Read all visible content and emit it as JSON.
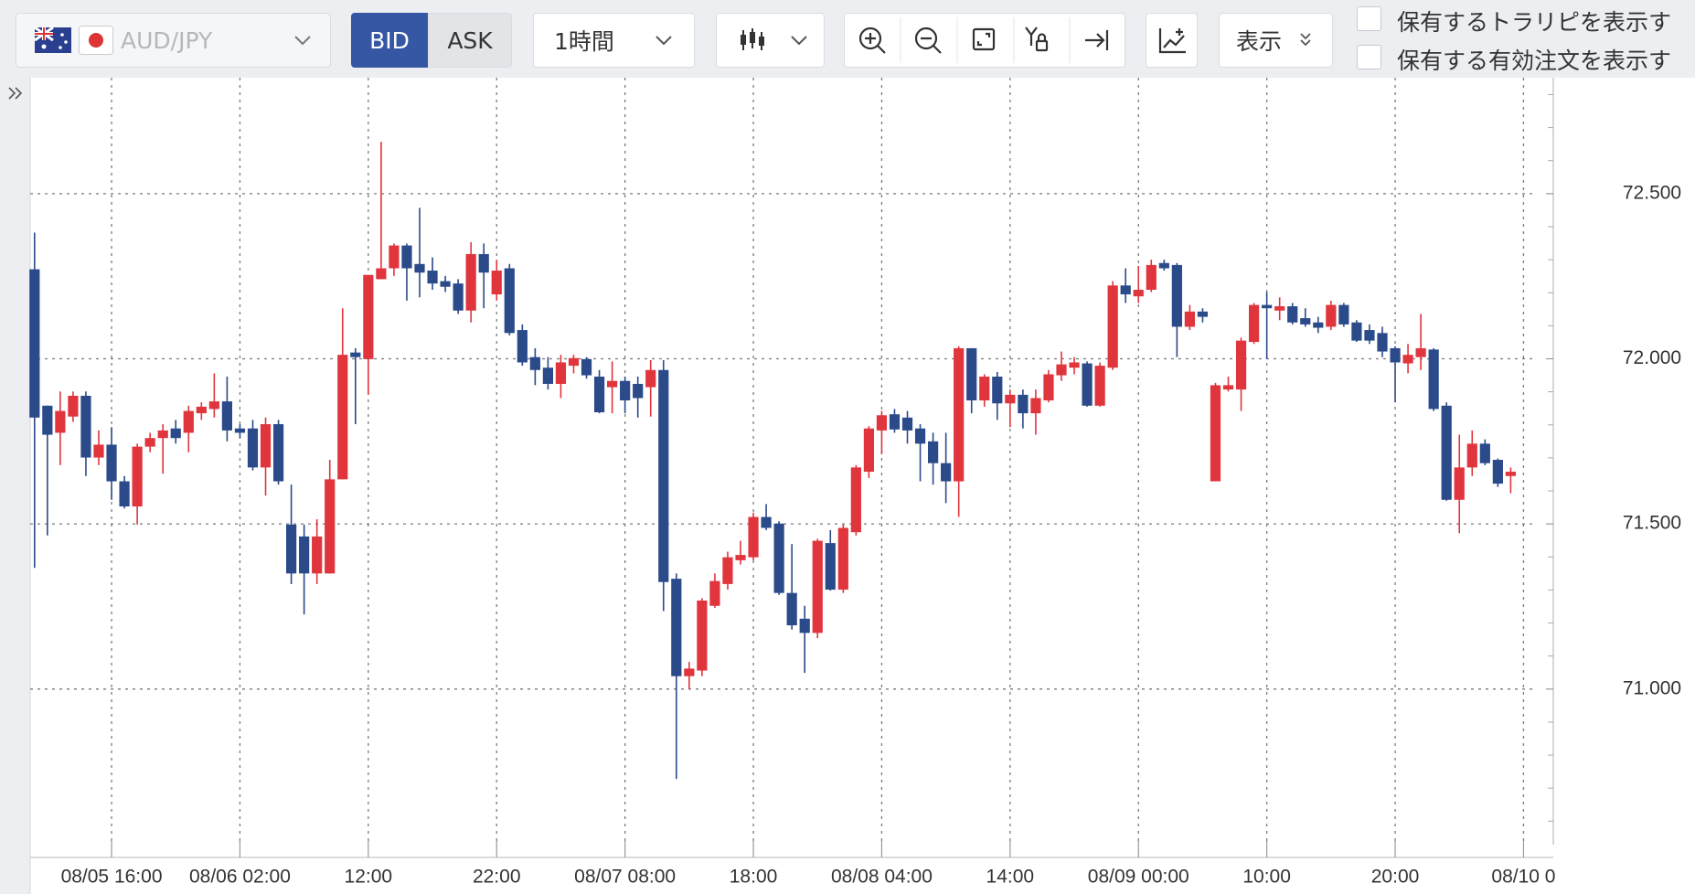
{
  "toolbar": {
    "pair": "AUD/JPY",
    "bid": "BID",
    "ask": "ASK",
    "interval": "1時間",
    "display": "表示",
    "checkboxes": [
      "保有するトラリピを表示す",
      "保有する有効注文を表示す"
    ]
  },
  "chart_data": {
    "type": "candlestick",
    "categories": [
      null,
      null,
      null,
      null,
      null,
      null,
      "08/05 16:00",
      null,
      null,
      null,
      null,
      null,
      null,
      null,
      null,
      null,
      "08/06 02:00",
      null,
      null,
      null,
      null,
      null,
      null,
      null,
      null,
      null,
      "12:00",
      null,
      null,
      null,
      null,
      null,
      null,
      null,
      null,
      null,
      "22:00",
      null,
      null,
      null,
      null,
      null,
      null,
      null,
      null,
      null,
      "08/07 08:00",
      null,
      null,
      null,
      null,
      null,
      null,
      null,
      null,
      null,
      "18:00",
      null,
      null,
      null,
      null,
      null,
      null,
      null,
      null,
      null,
      "08/08 04:00",
      null,
      null,
      null,
      null,
      null,
      null,
      null,
      null,
      null,
      "14:00",
      null,
      null,
      null,
      null,
      null,
      null,
      null,
      null,
      null,
      "08/09 00:00",
      null,
      null,
      null,
      null,
      null,
      null,
      null,
      null,
      null,
      "10:00",
      null,
      null,
      null,
      null,
      null,
      null,
      null,
      null,
      null,
      "20:00",
      null,
      null,
      null,
      null,
      null,
      null,
      null,
      null,
      null,
      "08/10 0"
    ],
    "open": [
      72.271,
      71.858,
      71.776,
      71.825,
      71.888,
      71.701,
      71.74,
      71.629,
      71.553,
      71.734,
      71.76,
      71.789,
      71.776,
      71.835,
      71.848,
      71.871,
      71.789,
      71.789,
      71.671,
      71.802,
      71.498,
      71.462,
      71.35,
      71.35,
      71.635,
      72.019,
      71.999,
      72.241,
      72.274,
      72.343,
      72.287,
      72.267,
      72.235,
      72.228,
      72.146,
      72.317,
      72.195,
      72.274,
      72.087,
      72.005,
      71.973,
      71.924,
      71.979,
      71.999,
      71.946,
      71.914,
      71.933,
      71.924,
      71.914,
      71.966,
      71.334,
      71.039,
      71.056,
      71.252,
      71.318,
      71.39,
      71.399,
      71.521,
      71.501,
      71.291,
      71.213,
      71.17,
      71.442,
      71.301,
      71.475,
      71.658,
      71.783,
      71.832,
      71.822,
      71.789,
      71.75,
      71.684,
      71.629,
      72.032,
      71.874,
      71.946,
      71.865,
      71.891,
      71.835,
      71.874,
      71.95,
      71.973,
      71.986,
      71.858,
      71.973,
      72.222,
      72.189,
      72.209,
      72.29,
      72.284,
      72.097,
      72.143,
      71.629,
      71.907,
      71.907,
      72.051,
      72.163,
      72.146,
      72.159,
      72.123,
      72.11,
      72.097,
      72.163,
      72.11,
      72.087,
      72.078,
      72.032,
      71.986,
      72.005,
      72.028,
      71.858,
      71.573,
      71.671,
      71.743,
      71.694,
      71.645,
      null
    ],
    "high": [
      72.382,
      71.858,
      71.901,
      71.901,
      71.901,
      71.783,
      71.793,
      71.645,
      71.743,
      71.776,
      71.802,
      71.815,
      71.858,
      71.868,
      71.956,
      71.946,
      71.802,
      71.815,
      71.822,
      71.815,
      71.619,
      71.498,
      71.514,
      71.694,
      72.153,
      72.032,
      72.254,
      72.657,
      72.349,
      72.349,
      72.457,
      72.307,
      72.251,
      72.241,
      72.353,
      72.349,
      72.3,
      72.287,
      72.104,
      72.032,
      72.005,
      72.012,
      72.012,
      72.005,
      71.966,
      71.992,
      71.946,
      71.946,
      71.996,
      71.996,
      71.35,
      71.082,
      71.275,
      71.35,
      71.416,
      71.449,
      71.534,
      71.56,
      71.508,
      71.439,
      71.252,
      71.455,
      71.481,
      71.498,
      71.678,
      71.796,
      71.842,
      71.848,
      71.842,
      71.802,
      71.776,
      71.776,
      72.038,
      72.032,
      71.953,
      71.96,
      71.907,
      71.907,
      71.907,
      71.966,
      72.022,
      72.005,
      71.992,
      71.989,
      72.235,
      72.274,
      72.281,
      72.3,
      72.3,
      72.29,
      72.163,
      72.153,
      71.927,
      71.946,
      72.064,
      72.169,
      72.202,
      72.186,
      72.169,
      72.153,
      72.127,
      72.176,
      72.169,
      72.117,
      72.104,
      72.097,
      72.038,
      72.045,
      72.136,
      72.032,
      71.868,
      71.77,
      71.783,
      71.756,
      71.698,
      71.671,
      null
    ],
    "low": [
      71.367,
      71.465,
      71.678,
      71.809,
      71.645,
      71.678,
      71.573,
      71.547,
      71.498,
      71.717,
      71.652,
      71.743,
      71.717,
      71.815,
      71.822,
      71.75,
      71.76,
      71.662,
      71.586,
      71.619,
      71.318,
      71.226,
      71.318,
      71.35,
      71.635,
      71.802,
      71.891,
      72.241,
      72.251,
      72.176,
      72.186,
      72.209,
      72.202,
      72.136,
      72.11,
      72.153,
      72.176,
      72.071,
      71.979,
      71.92,
      71.907,
      71.881,
      71.956,
      71.94,
      71.835,
      71.835,
      71.835,
      71.822,
      71.825,
      71.236,
      70.728,
      71.0,
      71.039,
      71.246,
      71.301,
      71.377,
      71.39,
      71.481,
      71.285,
      71.18,
      71.049,
      71.154,
      71.298,
      71.291,
      71.465,
      71.639,
      71.711,
      71.776,
      71.743,
      71.629,
      71.619,
      71.563,
      71.521,
      71.835,
      71.855,
      71.815,
      71.793,
      71.789,
      71.77,
      71.868,
      71.933,
      71.953,
      71.855,
      71.855,
      71.966,
      72.169,
      72.169,
      72.202,
      72.267,
      72.005,
      72.087,
      72.11,
      71.629,
      71.901,
      71.842,
      72.045,
      71.999,
      72.117,
      72.104,
      72.097,
      72.078,
      72.087,
      72.097,
      72.051,
      72.045,
      72.005,
      71.868,
      71.956,
      71.966,
      71.842,
      71.57,
      71.472,
      71.645,
      71.678,
      71.612,
      71.593,
      null
    ],
    "close": [
      71.822,
      71.77,
      71.842,
      71.888,
      71.701,
      71.74,
      71.629,
      71.553,
      71.734,
      71.76,
      71.783,
      71.76,
      71.842,
      71.855,
      71.871,
      71.783,
      71.776,
      71.671,
      71.802,
      71.629,
      71.35,
      71.35,
      71.462,
      71.635,
      72.012,
      72.005,
      72.254,
      72.274,
      72.343,
      72.274,
      72.261,
      72.228,
      72.218,
      72.146,
      72.317,
      72.261,
      72.267,
      72.078,
      71.989,
      71.966,
      71.924,
      71.989,
      72.002,
      71.95,
      71.838,
      71.933,
      71.874,
      71.881,
      71.966,
      71.324,
      71.039,
      71.062,
      71.268,
      71.327,
      71.399,
      71.406,
      71.521,
      71.488,
      71.291,
      71.193,
      71.17,
      71.449,
      71.301,
      71.488,
      71.671,
      71.789,
      71.829,
      71.786,
      71.783,
      71.743,
      71.684,
      71.629,
      72.032,
      71.874,
      71.946,
      71.865,
      71.891,
      71.835,
      71.881,
      71.953,
      71.983,
      71.989,
      71.858,
      71.979,
      72.222,
      72.195,
      72.209,
      72.284,
      72.274,
      72.097,
      72.143,
      72.127,
      71.92,
      71.92,
      72.055,
      72.163,
      72.153,
      72.159,
      72.11,
      72.104,
      72.094,
      72.163,
      72.104,
      72.055,
      72.055,
      72.022,
      71.989,
      72.012,
      72.032,
      71.848,
      71.573,
      71.671,
      71.743,
      71.684,
      71.622,
      71.658,
      null
    ],
    "up_color": "#e0353d",
    "down_color": "#2b4a8a",
    "ylim": [
      70.54,
      72.84
    ],
    "yticks": [
      {
        "value": 71,
        "label": "71.000"
      },
      {
        "value": 71.5,
        "label": "71.500"
      },
      {
        "value": 72,
        "label": "72.000"
      },
      {
        "value": 72.5,
        "label": "72.500"
      }
    ],
    "minor_yticks": [
      70.6,
      70.7,
      70.8,
      70.9,
      71.1,
      71.2,
      71.3,
      71.4,
      71.6,
      71.7,
      71.8,
      71.9,
      72.1,
      72.2,
      72.3,
      72.4,
      72.6,
      72.7,
      72.8
    ],
    "grid": true
  }
}
